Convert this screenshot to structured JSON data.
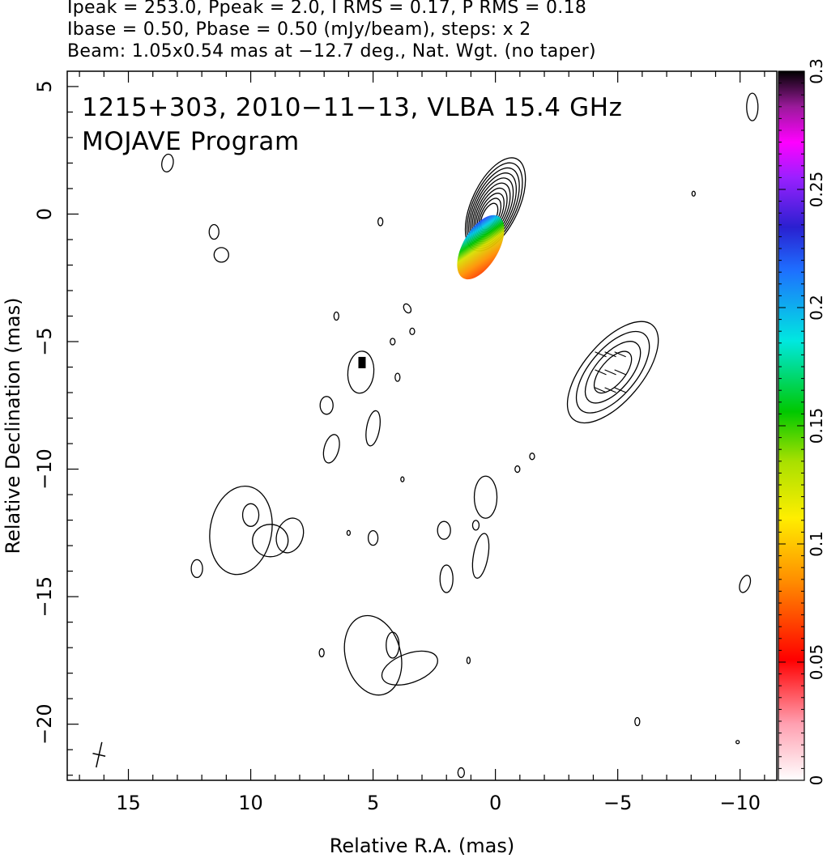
{
  "header": {
    "line1": "Ipeak = 253.0, Ppeak = 2.0, I RMS = 0.17, P RMS = 0.18",
    "line2": "Ibase = 0.50, Pbase = 0.50 (mJy/beam), steps: x 2",
    "line3": "Beam: 1.05x0.54 mas at −12.7 deg., Nat. Wgt. (no taper)"
  },
  "chart_data": {
    "type": "heatmap",
    "title": "1215+303, 2010−11−13, VLBA 15.4 GHz",
    "subtitle": "MOJAVE Program",
    "xlabel": "Relative R.A. (mas)",
    "ylabel": "Relative Declination (mas)",
    "xlim": [
      17.5,
      -11.5
    ],
    "ylim": [
      -22.2,
      5.6
    ],
    "x_ticks": [
      15,
      10,
      5,
      0,
      -5,
      -10
    ],
    "x_tick_labels": [
      "15",
      "10",
      "5",
      "0",
      "−5",
      "−10"
    ],
    "y_ticks": [
      5,
      0,
      -5,
      -10,
      -15,
      -20
    ],
    "y_tick_labels": [
      "5",
      "0",
      "−5",
      "−10",
      "−15",
      "−20"
    ],
    "colorbar": {
      "range": [
        0,
        0.3
      ],
      "ticks": [
        0,
        0.05,
        0.1,
        0.15,
        0.2,
        0.25,
        0.3
      ],
      "tick_labels": [
        "0",
        "0.05",
        "0.1",
        "0.15",
        "0.2",
        "0.25",
        "0.3"
      ]
    },
    "core": {
      "ra": 0,
      "dec": 0,
      "contour_levels": 10
    },
    "contour_base_mJy_per_beam": 0.5,
    "contour_step_factor": 2,
    "beam": {
      "major_mas": 1.05,
      "minor_mas": 0.54,
      "pa_deg": -12.7,
      "ra": 16.2,
      "dec": -21.2
    }
  }
}
